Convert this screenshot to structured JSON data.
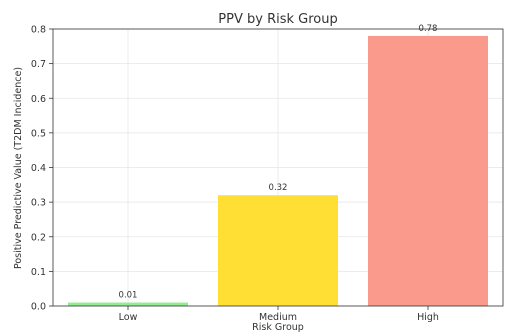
{
  "chart_data": {
    "type": "bar",
    "title": "PPV by Risk Group",
    "xlabel": "Risk Group",
    "ylabel": "Positive Predictive Value (T2DM Incidence)",
    "categories": [
      "Low",
      "Medium",
      "High"
    ],
    "values": [
      0.01,
      0.32,
      0.78
    ],
    "data_labels": [
      "0.01",
      "0.32",
      "0.78"
    ],
    "colors": [
      "#90ee90",
      "#ffdf33",
      "#fa9a8c"
    ],
    "ylim": [
      0,
      0.8
    ],
    "yticks": [
      0.0,
      0.1,
      0.2,
      0.3,
      0.4,
      0.5,
      0.6,
      0.7,
      0.8
    ],
    "ytick_labels": [
      "0.0",
      "0.1",
      "0.2",
      "0.3",
      "0.4",
      "0.5",
      "0.6",
      "0.7",
      "0.8"
    ],
    "grid": true,
    "legend": false
  }
}
